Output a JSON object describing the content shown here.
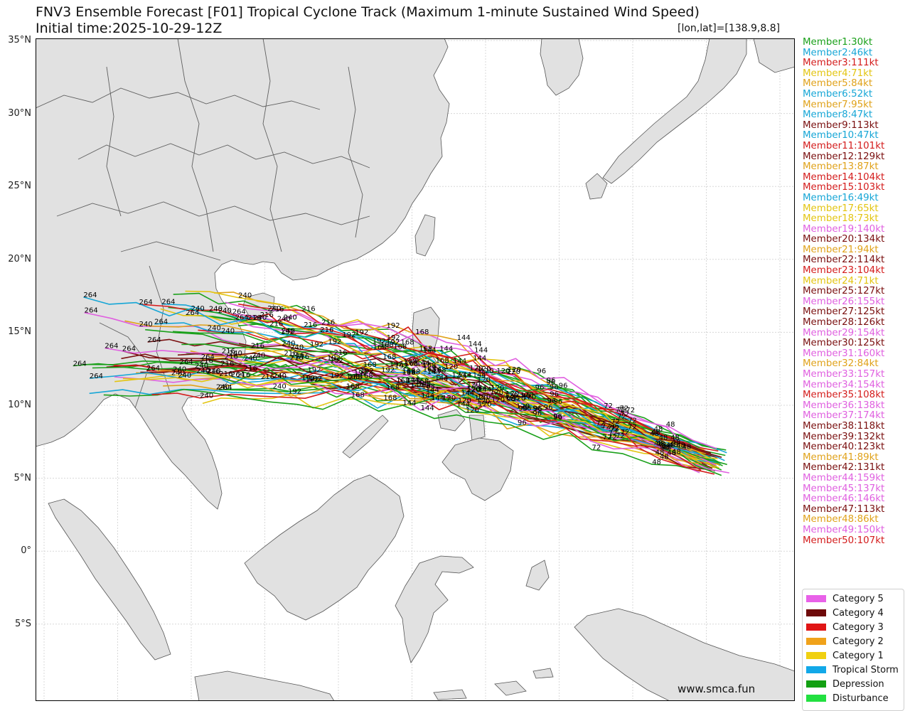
{
  "header": {
    "title": "FNV3 Ensemble Forecast [F01] Tropical Cyclone Track (Maximum 1-minute Sustained Wind Speed)",
    "initial_time": "Initial time:2025-10-29-12Z",
    "coordinate": "[lon,lat]=[138.9,8.8]"
  },
  "map": {
    "latitude_labels": [
      "35°N",
      "30°N",
      "25°N",
      "20°N",
      "15°N",
      "10°N",
      "5°N",
      "0°",
      "5°S"
    ],
    "track_start": {
      "lon": 138.9,
      "lat": 8.8
    },
    "hour_labels_sample": [
      "24",
      "48",
      "72",
      "96",
      "120",
      "144",
      "168",
      "192",
      "216",
      "240",
      "264"
    ]
  },
  "members": [
    {
      "label": "Member1:30kt",
      "color": "#1aa01a"
    },
    {
      "label": "Member2:46kt",
      "color": "#16a6d6"
    },
    {
      "label": "Member3:111kt",
      "color": "#d41c1c"
    },
    {
      "label": "Member4:71kt",
      "color": "#e3c512"
    },
    {
      "label": "Member5:84kt",
      "color": "#e0a21a"
    },
    {
      "label": "Member6:52kt",
      "color": "#16a6d6"
    },
    {
      "label": "Member7:95kt",
      "color": "#e0a21a"
    },
    {
      "label": "Member8:47kt",
      "color": "#16a6d6"
    },
    {
      "label": "Member9:113kt",
      "color": "#7a0f0f"
    },
    {
      "label": "Member10:47kt",
      "color": "#16a6d6"
    },
    {
      "label": "Member11:101kt",
      "color": "#d41c1c"
    },
    {
      "label": "Member12:129kt",
      "color": "#7a0f0f"
    },
    {
      "label": "Member13:87kt",
      "color": "#e0a21a"
    },
    {
      "label": "Member14:104kt",
      "color": "#d41c1c"
    },
    {
      "label": "Member15:103kt",
      "color": "#d41c1c"
    },
    {
      "label": "Member16:49kt",
      "color": "#16a6d6"
    },
    {
      "label": "Member17:65kt",
      "color": "#e3c512"
    },
    {
      "label": "Member18:73kt",
      "color": "#e3c512"
    },
    {
      "label": "Member19:140kt",
      "color": "#e060e0"
    },
    {
      "label": "Member20:134kt",
      "color": "#7a0f0f"
    },
    {
      "label": "Member21:94kt",
      "color": "#e0a21a"
    },
    {
      "label": "Member22:114kt",
      "color": "#7a0f0f"
    },
    {
      "label": "Member23:104kt",
      "color": "#d41c1c"
    },
    {
      "label": "Member24:71kt",
      "color": "#e3c512"
    },
    {
      "label": "Member25:127kt",
      "color": "#7a0f0f"
    },
    {
      "label": "Member26:155kt",
      "color": "#e060e0"
    },
    {
      "label": "Member27:125kt",
      "color": "#7a0f0f"
    },
    {
      "label": "Member28:126kt",
      "color": "#7a0f0f"
    },
    {
      "label": "Member29:154kt",
      "color": "#e060e0"
    },
    {
      "label": "Member30:125kt",
      "color": "#7a0f0f"
    },
    {
      "label": "Member31:160kt",
      "color": "#e060e0"
    },
    {
      "label": "Member32:84kt",
      "color": "#e0a21a"
    },
    {
      "label": "Member33:157kt",
      "color": "#e060e0"
    },
    {
      "label": "Member34:154kt",
      "color": "#e060e0"
    },
    {
      "label": "Member35:108kt",
      "color": "#d41c1c"
    },
    {
      "label": "Member36:138kt",
      "color": "#e060e0"
    },
    {
      "label": "Member37:174kt",
      "color": "#e060e0"
    },
    {
      "label": "Member38:118kt",
      "color": "#7a0f0f"
    },
    {
      "label": "Member39:132kt",
      "color": "#7a0f0f"
    },
    {
      "label": "Member40:123kt",
      "color": "#7a0f0f"
    },
    {
      "label": "Member41:89kt",
      "color": "#e0a21a"
    },
    {
      "label": "Member42:131kt",
      "color": "#7a0f0f"
    },
    {
      "label": "Member44:159kt",
      "color": "#e060e0"
    },
    {
      "label": "Member45:137kt",
      "color": "#e060e0"
    },
    {
      "label": "Member46:146kt",
      "color": "#e060e0"
    },
    {
      "label": "Member47:113kt",
      "color": "#7a0f0f"
    },
    {
      "label": "Member48:86kt",
      "color": "#e0a21a"
    },
    {
      "label": "Member49:150kt",
      "color": "#e060e0"
    },
    {
      "label": "Member50:107kt",
      "color": "#d41c1c"
    }
  ],
  "legend": [
    {
      "label": "Category 5",
      "color": "#e861e8"
    },
    {
      "label": "Category 4",
      "color": "#6e0a0a"
    },
    {
      "label": "Category 3",
      "color": "#e01515"
    },
    {
      "label": "Category 2",
      "color": "#f0a21a"
    },
    {
      "label": "Category 1",
      "color": "#f0d010"
    },
    {
      "label": "Tropical Storm",
      "color": "#12a8e8"
    },
    {
      "label": "Depression",
      "color": "#12a012"
    },
    {
      "label": "Disturbance",
      "color": "#22e040"
    }
  ],
  "footer": {
    "site": "www.smca.fun"
  }
}
